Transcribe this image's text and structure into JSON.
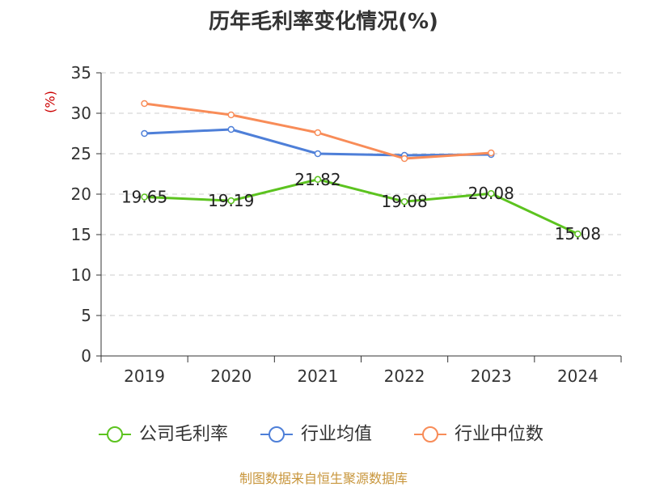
{
  "chart_data": {
    "type": "line",
    "title": "历年毛利率变化情况(%)",
    "ylabel": "(%)",
    "xlabel": "",
    "categories": [
      "2019",
      "2020",
      "2021",
      "2022",
      "2023",
      "2024"
    ],
    "ylim": [
      0,
      35
    ],
    "yticks": [
      0,
      5,
      10,
      15,
      20,
      25,
      30,
      35
    ],
    "grid": true,
    "legend_position": "bottom",
    "series": [
      {
        "name": "公司毛利率",
        "color": "#5cc31f",
        "values": [
          19.65,
          19.19,
          21.82,
          19.08,
          20.08,
          15.08
        ],
        "labels": [
          "19.65",
          "19.19",
          "21.82",
          "19.08",
          "20.08",
          "15.08"
        ]
      },
      {
        "name": "行业均值",
        "color": "#4e7fd8",
        "values": [
          27.5,
          28.0,
          25.0,
          24.8,
          24.9,
          null
        ]
      },
      {
        "name": "行业中位数",
        "color": "#f88c58",
        "values": [
          31.2,
          29.8,
          27.6,
          24.4,
          25.1,
          null
        ]
      }
    ]
  },
  "source": "制图数据来自恒生聚源数据库"
}
